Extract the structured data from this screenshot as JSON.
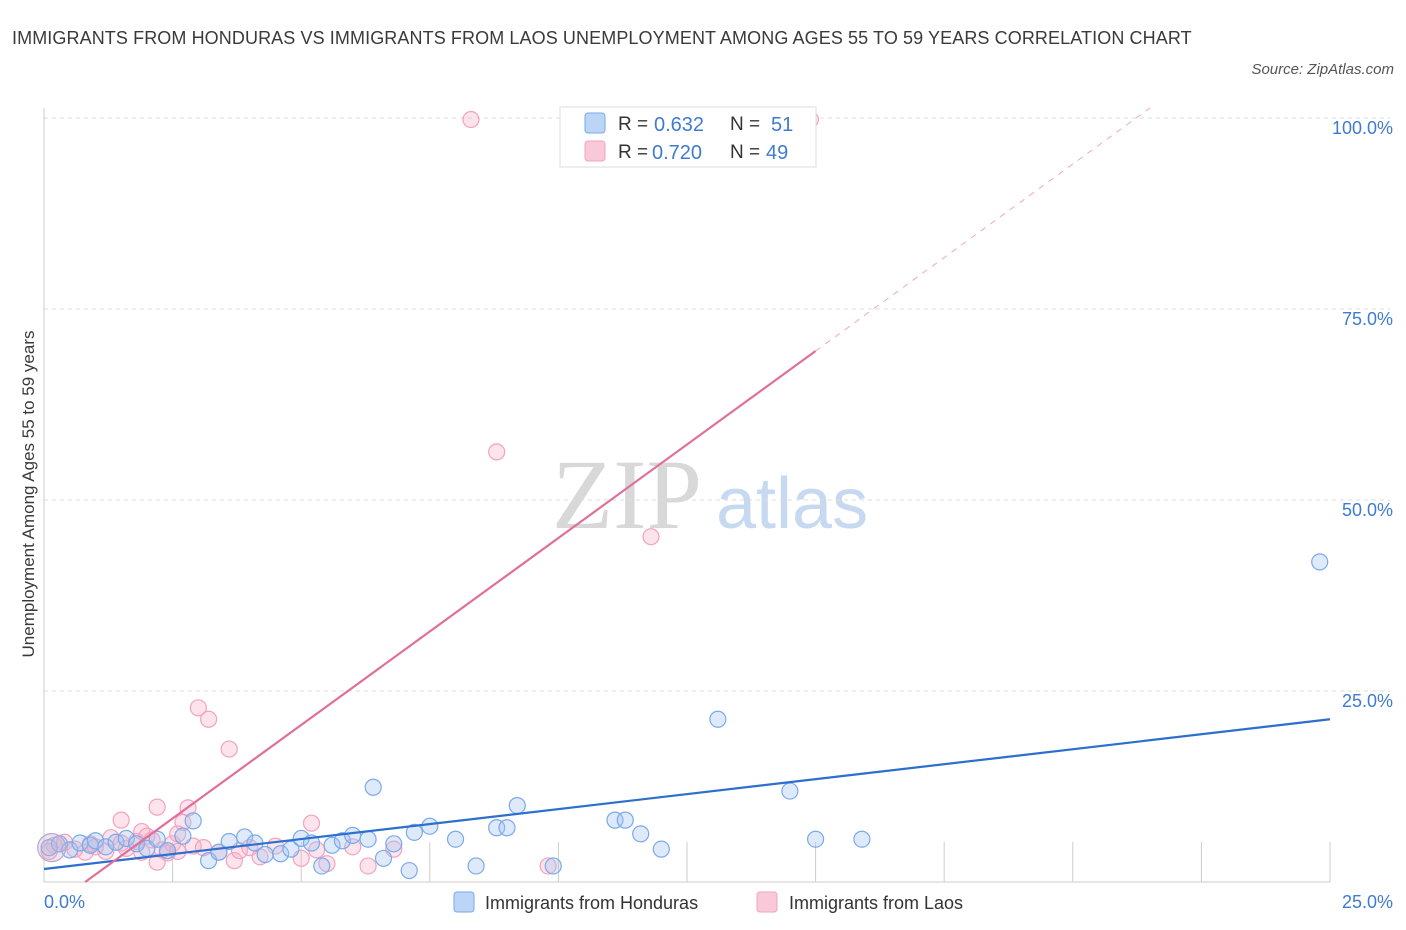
{
  "title": "IMMIGRANTS FROM HONDURAS VS IMMIGRANTS FROM LAOS UNEMPLOYMENT AMONG AGES 55 TO 59 YEARS CORRELATION CHART",
  "source": "Source: ZipAtlas.com",
  "watermark": {
    "zip": "ZIP",
    "atlas": "atlas"
  },
  "chart_data": {
    "type": "scatter",
    "xlabel": "",
    "ylabel": "Unemployment Among Ages 55 to 59 years",
    "xlim": [
      0,
      25
    ],
    "ylim": [
      0,
      100
    ],
    "x_tick_labels": [
      "0.0%",
      "25.0%"
    ],
    "y_ticks": [
      25,
      50,
      75,
      100
    ],
    "y_tick_labels": [
      "25.0%",
      "50.0%",
      "75.0%",
      "100.0%"
    ],
    "grid": true,
    "legend_position": "top-center",
    "series": [
      {
        "name": "Immigrants from Honduras",
        "color": "#7aaaea",
        "line_color": "#2c6fcc",
        "R": "0.632",
        "N": "51",
        "trend": {
          "x0": 0,
          "y0": 1.7,
          "x1": 25,
          "y1": 21.3,
          "dashed_to": 25
        },
        "points": [
          [
            0.1,
            4.5
          ],
          [
            0.3,
            5.0
          ],
          [
            0.5,
            4.2
          ],
          [
            0.7,
            5.1
          ],
          [
            0.9,
            4.8
          ],
          [
            1.0,
            5.4
          ],
          [
            1.2,
            4.6
          ],
          [
            1.4,
            5.2
          ],
          [
            1.6,
            5.7
          ],
          [
            1.8,
            5.0
          ],
          [
            2.0,
            4.4
          ],
          [
            2.2,
            5.6
          ],
          [
            2.4,
            4.1
          ],
          [
            2.7,
            6.0
          ],
          [
            2.9,
            8.0
          ],
          [
            3.2,
            2.8
          ],
          [
            3.4,
            3.9
          ],
          [
            3.6,
            5.3
          ],
          [
            3.9,
            5.9
          ],
          [
            4.1,
            5.1
          ],
          [
            4.3,
            3.6
          ],
          [
            4.6,
            3.7
          ],
          [
            4.8,
            4.3
          ],
          [
            5.0,
            5.7
          ],
          [
            5.2,
            5.1
          ],
          [
            5.4,
            2.1
          ],
          [
            5.6,
            4.8
          ],
          [
            5.8,
            5.4
          ],
          [
            6.0,
            6.1
          ],
          [
            6.3,
            5.6
          ],
          [
            6.4,
            12.4
          ],
          [
            6.6,
            3.1
          ],
          [
            6.8,
            5.0
          ],
          [
            7.1,
            1.5
          ],
          [
            7.2,
            6.5
          ],
          [
            7.5,
            7.3
          ],
          [
            8.0,
            5.6
          ],
          [
            8.4,
            2.1
          ],
          [
            8.8,
            7.1
          ],
          [
            9.0,
            7.1
          ],
          [
            9.2,
            10.0
          ],
          [
            9.9,
            2.1
          ],
          [
            11.1,
            8.1
          ],
          [
            11.3,
            8.1
          ],
          [
            11.6,
            6.3
          ],
          [
            12.0,
            4.3
          ],
          [
            13.1,
            21.3
          ],
          [
            14.5,
            11.9
          ],
          [
            15.0,
            5.6
          ],
          [
            15.9,
            5.6
          ],
          [
            24.8,
            41.9
          ]
        ]
      },
      {
        "name": "Immigrants from Laos",
        "color": "#f2a3bf",
        "line_color": "#e0709a",
        "R": "0.720",
        "N": "49",
        "trend": {
          "x0": 0.8,
          "y0": 0,
          "x1": 15.0,
          "y1": 69.5,
          "dashed_to": 21.5
        },
        "points": [
          [
            0.1,
            4.0
          ],
          [
            0.2,
            4.8
          ],
          [
            0.4,
            5.2
          ],
          [
            0.6,
            4.3
          ],
          [
            0.8,
            3.9
          ],
          [
            0.9,
            5.0
          ],
          [
            1.0,
            4.6
          ],
          [
            1.2,
            4.0
          ],
          [
            1.3,
            5.8
          ],
          [
            1.5,
            5.1
          ],
          [
            1.5,
            8.1
          ],
          [
            1.6,
            4.4
          ],
          [
            1.8,
            5.3
          ],
          [
            1.9,
            3.9
          ],
          [
            1.9,
            6.6
          ],
          [
            2.0,
            6.0
          ],
          [
            2.1,
            5.5
          ],
          [
            2.2,
            9.8
          ],
          [
            2.2,
            2.6
          ],
          [
            2.3,
            4.2
          ],
          [
            2.4,
            3.8
          ],
          [
            2.5,
            5.0
          ],
          [
            2.6,
            6.3
          ],
          [
            2.6,
            4.0
          ],
          [
            2.7,
            7.8
          ],
          [
            2.8,
            9.7
          ],
          [
            2.9,
            4.7
          ],
          [
            3.0,
            22.8
          ],
          [
            3.1,
            4.5
          ],
          [
            3.2,
            21.3
          ],
          [
            3.4,
            3.9
          ],
          [
            3.6,
            17.4
          ],
          [
            3.7,
            2.8
          ],
          [
            3.8,
            4.1
          ],
          [
            4.0,
            4.5
          ],
          [
            4.2,
            3.3
          ],
          [
            4.5,
            4.7
          ],
          [
            5.0,
            3.1
          ],
          [
            5.2,
            7.7
          ],
          [
            5.3,
            4.2
          ],
          [
            5.5,
            2.4
          ],
          [
            6.0,
            4.6
          ],
          [
            6.3,
            2.1
          ],
          [
            6.8,
            4.3
          ],
          [
            8.3,
            99.8
          ],
          [
            8.8,
            56.3
          ],
          [
            9.8,
            2.1
          ],
          [
            11.8,
            45.2
          ],
          [
            14.9,
            99.8
          ]
        ]
      }
    ]
  },
  "legend_bottom": {
    "honduras": "Immigrants from Honduras",
    "laos": "Immigrants from Laos"
  },
  "legend_top": {
    "r_label": "R =",
    "n_label": "N ="
  }
}
